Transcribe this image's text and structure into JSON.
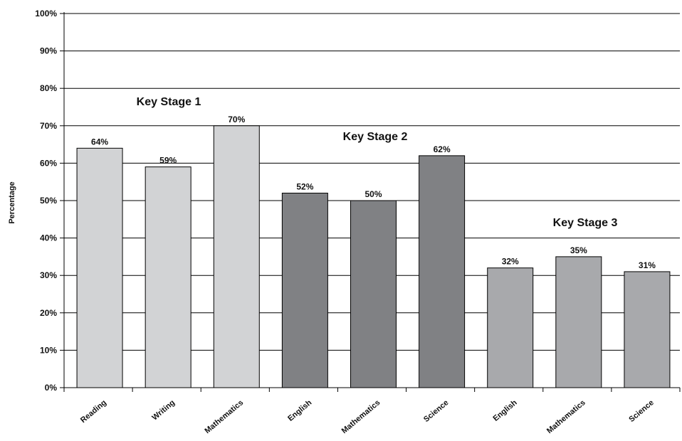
{
  "chart_data": {
    "type": "bar",
    "ylabel": "Percentage",
    "ylim": [
      0,
      100
    ],
    "yticks": [
      "0%",
      "10%",
      "20%",
      "30%",
      "40%",
      "50%",
      "60%",
      "70%",
      "80%",
      "90%",
      "100%"
    ],
    "grid": true,
    "groups": [
      {
        "name": "Key Stage 1",
        "color": "#d2d3d5",
        "categories": [
          "Reading",
          "Writing",
          "Mathematics"
        ],
        "values": [
          64,
          59,
          70
        ],
        "value_labels": [
          "64%",
          "59%",
          "70%"
        ]
      },
      {
        "name": "Key Stage 2",
        "color": "#808184",
        "categories": [
          "English",
          "Mathematics",
          "Science"
        ],
        "values": [
          52,
          50,
          62
        ],
        "value_labels": [
          "52%",
          "50%",
          "62%"
        ]
      },
      {
        "name": "Key Stage 3",
        "color": "#a8a9ac",
        "categories": [
          "English",
          "Mathematics",
          "Science"
        ],
        "values": [
          32,
          35,
          31
        ],
        "value_labels": [
          "32%",
          "35%",
          "31%"
        ]
      }
    ]
  }
}
